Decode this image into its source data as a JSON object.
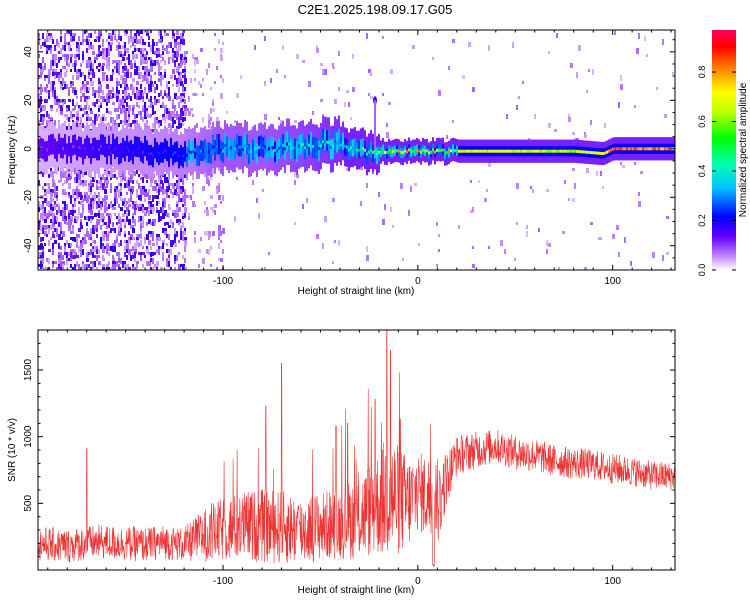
{
  "title": "C2E1.2025.198.09.17.G05",
  "colors": {
    "line": "#ee3333",
    "axis": "#000000",
    "colormap": [
      "#ffffff",
      "#8a00ff",
      "#0000ff",
      "#00ffff",
      "#00ff00",
      "#ffff00",
      "#ff8000",
      "#ff0000",
      "#ff0080"
    ]
  },
  "chart_data": [
    {
      "type": "heatmap",
      "xlabel": "Height of straight line (km)",
      "ylabel": "Frequency (Hz)",
      "xlim": [
        -195,
        132
      ],
      "ylim": [
        -50,
        49
      ],
      "x_ticks": [
        -100,
        0,
        100
      ],
      "x_tick_labels": [
        "-100",
        "0",
        "100"
      ],
      "y_ticks": [
        -40,
        -20,
        0,
        20,
        40
      ],
      "y_tick_labels": [
        "-40",
        "-20",
        "0",
        "20",
        "40"
      ],
      "colorbar": {
        "label": "Normalized spectral amplitude",
        "range": [
          0,
          0.97
        ],
        "ticks": [
          0.0,
          0.2,
          0.4,
          0.6,
          0.8
        ],
        "tick_labels": [
          "0.0",
          "0.2",
          "0.4",
          "0.6",
          "0.8"
        ]
      },
      "ridge": {
        "x": [
          -195,
          -160,
          -120,
          -100,
          -80,
          -60,
          -40,
          -30,
          -20,
          0,
          20,
          50,
          80,
          95,
          100,
          132
        ],
        "frequency_center": [
          0,
          0,
          -2,
          0,
          0,
          1,
          2,
          -1,
          -1,
          -1,
          -1,
          -1,
          -1,
          -2,
          0,
          0
        ],
        "amplitude": [
          0.15,
          0.2,
          0.25,
          0.35,
          0.35,
          0.4,
          0.45,
          0.6,
          0.7,
          0.75,
          0.75,
          0.75,
          0.7,
          0.8,
          0.95,
          0.9
        ]
      },
      "noise_region": {
        "x_end": -120,
        "x_sparse_end": -100
      },
      "spike": {
        "x": -22,
        "frequency": 20
      }
    },
    {
      "type": "line",
      "xlabel": "Height of straight line (km)",
      "ylabel": "SNR (10 * v/v)",
      "xlim": [
        -195,
        132
      ],
      "ylim": [
        0,
        1800
      ],
      "x_ticks": [
        -100,
        0,
        100
      ],
      "x_tick_labels": [
        "-100",
        "0",
        "100"
      ],
      "y_ticks": [
        500,
        1000,
        1500
      ],
      "y_tick_labels": [
        "500",
        "1000",
        "1500"
      ],
      "grid": false,
      "series": [
        {
          "x": [
            -195,
            -180,
            -165,
            -150,
            -140,
            -130,
            -120,
            -110,
            -100,
            -90,
            -80,
            -70,
            -60,
            -50,
            -40,
            -30,
            -20,
            -15,
            -10,
            -5,
            0,
            5,
            10,
            15,
            20,
            30,
            40,
            50,
            60,
            70,
            80,
            90,
            100,
            110,
            120,
            132
          ],
          "values": [
            200,
            180,
            210,
            200,
            190,
            210,
            190,
            260,
            300,
            330,
            330,
            320,
            300,
            330,
            350,
            400,
            500,
            560,
            520,
            500,
            590,
            550,
            480,
            700,
            860,
            900,
            930,
            880,
            860,
            820,
            800,
            790,
            760,
            740,
            710,
            700
          ],
          "spread": [
            130,
            130,
            130,
            130,
            130,
            130,
            130,
            200,
            240,
            260,
            280,
            280,
            260,
            260,
            270,
            320,
            400,
            500,
            420,
            360,
            300,
            320,
            360,
            200,
            150,
            140,
            130,
            130,
            125,
            120,
            120,
            115,
            115,
            110,
            110,
            110
          ]
        }
      ],
      "spikes": [
        {
          "x": -170,
          "value": 910
        },
        {
          "x": -78,
          "value": 1230
        },
        {
          "x": -70,
          "value": 1550
        },
        {
          "x": -42,
          "value": 1080
        },
        {
          "x": -36,
          "value": 1100
        },
        {
          "x": -22,
          "value": 1280
        },
        {
          "x": -16,
          "value": 1800
        },
        {
          "x": -14,
          "value": 1650
        },
        {
          "x": -9,
          "value": 1130
        },
        {
          "x": 8,
          "value": 1000
        }
      ]
    }
  ]
}
